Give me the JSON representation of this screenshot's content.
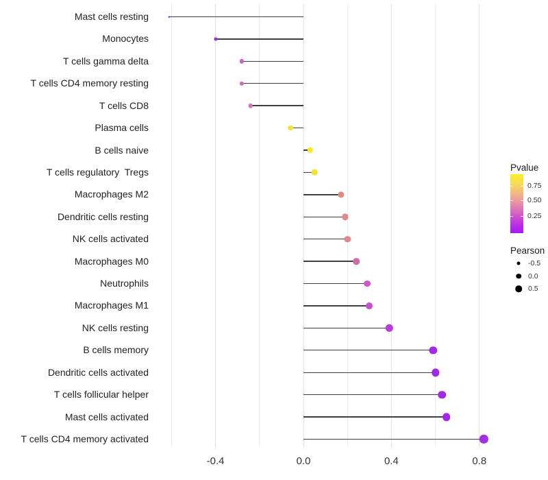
{
  "chart_data": {
    "type": "scatter",
    "variant": "lollipop",
    "title": "",
    "xlabel": "",
    "ylabel": "",
    "xlim": [
      -0.69,
      0.89
    ],
    "x_ticks": [
      -0.4,
      0.0,
      0.4,
      0.8
    ],
    "x_tick_labels": [
      "-0.4",
      "0.0",
      "0.4",
      "0.8"
    ],
    "gridline_values": [
      -0.6,
      -0.4,
      -0.2,
      0.0,
      0.2,
      0.4,
      0.6,
      0.8
    ],
    "grid": true,
    "points": [
      {
        "label": "Mast cells resting",
        "pearson": -0.61,
        "color": "#8326b2"
      },
      {
        "label": "Monocytes",
        "pearson": -0.4,
        "color": "#9933d2"
      },
      {
        "label": "T cells gamma delta",
        "pearson": -0.28,
        "color": "#c466c4"
      },
      {
        "label": "T cells CD4 memory resting",
        "pearson": -0.28,
        "color": "#c76bc3"
      },
      {
        "label": "T cells CD8",
        "pearson": -0.24,
        "color": "#d07ab4"
      },
      {
        "label": "Plasma cells",
        "pearson": -0.06,
        "color": "#f2e33c"
      },
      {
        "label": "B cells naive",
        "pearson": 0.03,
        "color": "#f7ec16"
      },
      {
        "label": "T cells regulatory  Tregs",
        "pearson": 0.05,
        "color": "#f3e335"
      },
      {
        "label": "Macrophages M2",
        "pearson": 0.17,
        "color": "#dd8a84"
      },
      {
        "label": "Dendritic cells resting",
        "pearson": 0.19,
        "color": "#df8b87"
      },
      {
        "label": "NK cells activated",
        "pearson": 0.2,
        "color": "#df8a8c"
      },
      {
        "label": "Macrophages M0",
        "pearson": 0.24,
        "color": "#ce6ba8"
      },
      {
        "label": "Neutrophils",
        "pearson": 0.29,
        "color": "#ce58cc"
      },
      {
        "label": "Macrophages M1",
        "pearson": 0.3,
        "color": "#c94fcb"
      },
      {
        "label": "NK cells resting",
        "pearson": 0.39,
        "color": "#b73bde"
      },
      {
        "label": "B cells memory",
        "pearson": 0.59,
        "color": "#a32be8"
      },
      {
        "label": "Dendritic cells activated",
        "pearson": 0.6,
        "color": "#a02be5"
      },
      {
        "label": "T cells follicular helper",
        "pearson": 0.63,
        "color": "#a429e6"
      },
      {
        "label": "Mast cells activated",
        "pearson": 0.65,
        "color": "#a527ea"
      },
      {
        "label": "T cells CD4 memory activated",
        "pearson": 0.82,
        "color": "#a22fe2"
      }
    ],
    "legends": {
      "pvalue": {
        "title": "Pvalue",
        "tick_labels": [
          "0.75",
          "0.50",
          "0.25"
        ],
        "gradient_stops": [
          "#fbf028",
          "#f8de52",
          "#f4c177",
          "#eca09a",
          "#df7bb4",
          "#ce54ce",
          "#b92fe5",
          "#a717f2"
        ],
        "position": "right"
      },
      "pearson": {
        "title": "Pearson",
        "items": [
          {
            "label": "-0.5",
            "diameter": 5
          },
          {
            "label": "0.0",
            "diameter": 7.5
          },
          {
            "label": "0.5",
            "diameter": 9.5
          }
        ],
        "dot_color": "#000000"
      }
    },
    "stem_color": "#3d3d3d",
    "background_color": "#ffffff"
  }
}
